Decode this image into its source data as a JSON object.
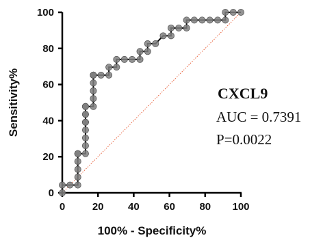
{
  "chart_data": {
    "type": "line",
    "title": "",
    "xlabel": "100% - Specificity%",
    "ylabel": "Sensitivity%",
    "xlim": [
      0,
      100
    ],
    "ylim": [
      0,
      100
    ],
    "xticks": [
      0,
      20,
      40,
      60,
      80,
      100
    ],
    "yticks": [
      0,
      20,
      40,
      60,
      80,
      100
    ],
    "grid": false,
    "annotation": {
      "marker": "CXCL9",
      "auc": "AUC = 0.7391",
      "p": "P=0.0022"
    },
    "series": [
      {
        "kind": "roc-step",
        "color": "#000000",
        "marker_color": "#808080",
        "x": [
          0,
          0,
          4.3,
          8.7,
          8.7,
          8.7,
          8.7,
          8.7,
          8.7,
          8.7,
          13.0,
          13.0,
          13.0,
          13.0,
          13.0,
          13.0,
          13.0,
          13.0,
          13.0,
          13.0,
          13.0,
          17.4,
          17.4,
          17.4,
          17.4,
          17.4,
          17.4,
          17.4,
          17.4,
          17.4,
          21.7,
          26.1,
          26.1,
          30.4,
          30.4,
          34.8,
          39.1,
          43.5,
          43.5,
          47.8,
          47.8,
          52.2,
          56.5,
          60.9,
          60.9,
          65.2,
          69.6,
          69.6,
          73.9,
          78.3,
          82.6,
          87.0,
          91.3,
          91.3,
          95.7,
          100
        ],
        "y": [
          0,
          4.3,
          4.3,
          4.3,
          8.7,
          13.0,
          17.4,
          21.7,
          21.7,
          21.7,
          21.7,
          26.1,
          30.4,
          34.8,
          39.1,
          39.1,
          43.5,
          43.5,
          47.8,
          47.8,
          47.8,
          47.8,
          52.2,
          56.5,
          60.9,
          65.2,
          65.2,
          65.2,
          65.2,
          65.2,
          65.2,
          65.2,
          69.6,
          69.6,
          73.9,
          73.9,
          73.9,
          73.9,
          78.3,
          78.3,
          82.6,
          82.6,
          87.0,
          87.0,
          91.3,
          91.3,
          91.3,
          95.7,
          95.7,
          95.7,
          95.7,
          95.7,
          95.7,
          100,
          100,
          100
        ]
      },
      {
        "kind": "reference-diagonal",
        "color": "#e8603a",
        "x": [
          0,
          100
        ],
        "y": [
          0,
          100
        ]
      }
    ]
  }
}
